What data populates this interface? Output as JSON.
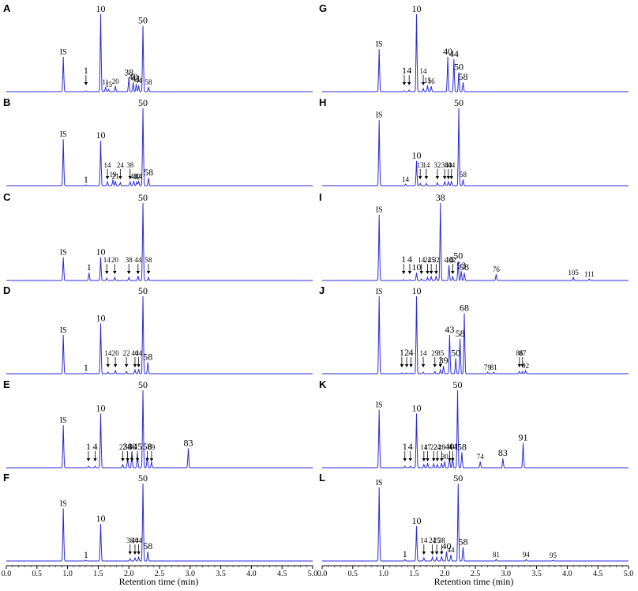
{
  "chart_data": {
    "type": "line",
    "xlabel": "Retention time (min)",
    "xlim": [
      0.0,
      5.0
    ],
    "xticks": [
      "0.0",
      "0.5",
      "1.0",
      "1.5",
      "2.0",
      "2.5",
      "3.0",
      "3.5",
      "4.0",
      "4.5",
      "5.0"
    ],
    "line_color": "#2b2bd8",
    "panels": [
      {
        "id": "A",
        "peaks": [
          {
            "x": 0.93,
            "h": 0.45,
            "label": "IS"
          },
          {
            "x": 1.3,
            "h": 0.01,
            "label": "1",
            "arrow": true
          },
          {
            "x": 1.54,
            "h": 1.0,
            "label": "10"
          },
          {
            "x": 1.62,
            "h": 0.06,
            "label": "11"
          },
          {
            "x": 1.67,
            "h": 0.03,
            "label": "15"
          },
          {
            "x": 1.78,
            "h": 0.07,
            "label": "20"
          },
          {
            "x": 2.0,
            "h": 0.18,
            "label": "38"
          },
          {
            "x": 2.07,
            "h": 0.12,
            "label": "40"
          },
          {
            "x": 2.12,
            "h": 0.1,
            "label": "41"
          },
          {
            "x": 2.16,
            "h": 0.08,
            "label": "44"
          },
          {
            "x": 2.23,
            "h": 0.85,
            "label": "50"
          },
          {
            "x": 2.32,
            "h": 0.06,
            "label": "58"
          }
        ]
      },
      {
        "id": "B",
        "peaks": [
          {
            "x": 0.93,
            "h": 0.6,
            "label": "IS"
          },
          {
            "x": 1.3,
            "h": 0.01,
            "label": "1"
          },
          {
            "x": 1.54,
            "h": 0.58,
            "label": "10"
          },
          {
            "x": 1.65,
            "h": 0.05,
            "label": "14",
            "arrow": true
          },
          {
            "x": 1.74,
            "h": 0.08,
            "label": "19"
          },
          {
            "x": 1.78,
            "h": 0.06,
            "label": "21"
          },
          {
            "x": 1.86,
            "h": 0.04,
            "label": "24",
            "arrow": true
          },
          {
            "x": 2.02,
            "h": 0.05,
            "label": "38",
            "arrow": true
          },
          {
            "x": 2.08,
            "h": 0.06,
            "label": "40"
          },
          {
            "x": 2.13,
            "h": 0.05,
            "label": "42"
          },
          {
            "x": 2.16,
            "h": 0.06,
            "label": "44"
          },
          {
            "x": 2.23,
            "h": 1.0,
            "label": "50"
          },
          {
            "x": 2.32,
            "h": 0.1,
            "label": "58"
          }
        ]
      },
      {
        "id": "C",
        "peaks": [
          {
            "x": 0.93,
            "h": 0.3,
            "label": "IS"
          },
          {
            "x": 1.35,
            "h": 0.1,
            "label": "1"
          },
          {
            "x": 1.54,
            "h": 0.3,
            "label": "10"
          },
          {
            "x": 1.64,
            "h": 0.03,
            "label": "14",
            "arrow": true
          },
          {
            "x": 1.77,
            "h": 0.04,
            "label": "20",
            "arrow": true
          },
          {
            "x": 2.0,
            "h": 0.04,
            "label": "38",
            "arrow": true
          },
          {
            "x": 2.15,
            "h": 0.06,
            "label": "44",
            "arrow": true
          },
          {
            "x": 2.23,
            "h": 1.0,
            "label": "50"
          },
          {
            "x": 2.32,
            "h": 0.04,
            "label": "58",
            "arrow": true
          }
        ]
      },
      {
        "id": "D",
        "peaks": [
          {
            "x": 0.93,
            "h": 0.5,
            "label": "IS"
          },
          {
            "x": 1.3,
            "h": 0.01,
            "label": "1"
          },
          {
            "x": 1.54,
            "h": 0.65,
            "label": "10"
          },
          {
            "x": 1.66,
            "h": 0.02,
            "label": "14",
            "arrow": true
          },
          {
            "x": 1.78,
            "h": 0.04,
            "label": "20",
            "arrow": true
          },
          {
            "x": 1.96,
            "h": 0.03,
            "label": "22",
            "arrow": true
          },
          {
            "x": 2.1,
            "h": 0.05,
            "label": "40",
            "arrow": true
          },
          {
            "x": 2.16,
            "h": 0.06,
            "label": "44",
            "arrow": true
          },
          {
            "x": 2.23,
            "h": 1.0,
            "label": "50"
          },
          {
            "x": 2.31,
            "h": 0.15,
            "label": "58"
          }
        ]
      },
      {
        "id": "E",
        "peaks": [
          {
            "x": 0.93,
            "h": 0.55,
            "label": "IS"
          },
          {
            "x": 1.34,
            "h": 0.02,
            "label": "1",
            "arrow": true
          },
          {
            "x": 1.45,
            "h": 0.02,
            "label": "4",
            "arrow": true
          },
          {
            "x": 1.54,
            "h": 0.7,
            "label": "10"
          },
          {
            "x": 1.9,
            "h": 0.04,
            "label": "22",
            "arrow": true
          },
          {
            "x": 1.98,
            "h": 0.12,
            "label": "38",
            "arrow": true
          },
          {
            "x": 2.05,
            "h": 0.2,
            "label": "40",
            "arrow": true
          },
          {
            "x": 2.14,
            "h": 0.18,
            "label": "45",
            "arrow": true
          },
          {
            "x": 2.23,
            "h": 1.0,
            "label": "50"
          },
          {
            "x": 2.3,
            "h": 0.15,
            "label": "58",
            "arrow": true
          },
          {
            "x": 2.37,
            "h": 0.08,
            "label": "69",
            "arrow": true
          },
          {
            "x": 2.97,
            "h": 0.25,
            "label": "83"
          }
        ]
      },
      {
        "id": "F",
        "peaks": [
          {
            "x": 0.93,
            "h": 0.68,
            "label": "IS"
          },
          {
            "x": 1.3,
            "h": 0.01,
            "label": "1"
          },
          {
            "x": 1.54,
            "h": 0.48,
            "label": "10"
          },
          {
            "x": 2.02,
            "h": 0.03,
            "label": "38",
            "arrow": true
          },
          {
            "x": 2.1,
            "h": 0.04,
            "label": "40",
            "arrow": true
          },
          {
            "x": 2.16,
            "h": 0.05,
            "label": "44",
            "arrow": true
          },
          {
            "x": 2.23,
            "h": 1.0,
            "label": "50"
          },
          {
            "x": 2.31,
            "h": 0.12,
            "label": "58"
          }
        ]
      },
      {
        "id": "G",
        "peaks": [
          {
            "x": 0.93,
            "h": 0.55,
            "label": "IS"
          },
          {
            "x": 1.34,
            "h": 0.01,
            "label": "1",
            "arrow": true
          },
          {
            "x": 1.42,
            "h": 0.02,
            "label": "4",
            "arrow": true
          },
          {
            "x": 1.54,
            "h": 1.0,
            "label": "10"
          },
          {
            "x": 1.65,
            "h": 0.04,
            "label": "14",
            "arrow": true
          },
          {
            "x": 1.72,
            "h": 0.08,
            "label": "15"
          },
          {
            "x": 1.78,
            "h": 0.07,
            "label": "16"
          },
          {
            "x": 2.05,
            "h": 0.45,
            "label": "40"
          },
          {
            "x": 2.15,
            "h": 0.42,
            "label": "44"
          },
          {
            "x": 2.23,
            "h": 0.25,
            "label": "50"
          },
          {
            "x": 2.3,
            "h": 0.12,
            "label": "58"
          }
        ]
      },
      {
        "id": "H",
        "peaks": [
          {
            "x": 0.93,
            "h": 0.85,
            "label": "IS"
          },
          {
            "x": 1.36,
            "h": 0.02,
            "label": "14"
          },
          {
            "x": 1.54,
            "h": 0.32,
            "label": "10"
          },
          {
            "x": 1.6,
            "h": 0.03,
            "label": "13",
            "arrow": true
          },
          {
            "x": 1.7,
            "h": 0.03,
            "label": "14",
            "arrow": true
          },
          {
            "x": 1.88,
            "h": 0.04,
            "label": "32",
            "arrow": true
          },
          {
            "x": 2.0,
            "h": 0.05,
            "label": "38",
            "arrow": true
          },
          {
            "x": 2.06,
            "h": 0.05,
            "label": "40",
            "arrow": true
          },
          {
            "x": 2.11,
            "h": 0.06,
            "label": "44",
            "arrow": true
          },
          {
            "x": 2.23,
            "h": 1.0,
            "label": "50"
          },
          {
            "x": 2.3,
            "h": 0.08,
            "label": "58"
          }
        ]
      },
      {
        "id": "I",
        "peaks": [
          {
            "x": 0.93,
            "h": 0.85,
            "label": "IS"
          },
          {
            "x": 1.33,
            "h": 0.01,
            "label": "1",
            "arrow": true
          },
          {
            "x": 1.43,
            "h": 0.01,
            "label": "4",
            "arrow": true
          },
          {
            "x": 1.54,
            "h": 0.1,
            "label": "10"
          },
          {
            "x": 1.62,
            "h": 0.02,
            "label": "14",
            "arrow": true
          },
          {
            "x": 1.72,
            "h": 0.04,
            "label": "24",
            "arrow": true
          },
          {
            "x": 1.78,
            "h": 0.05,
            "label": "25",
            "arrow": true
          },
          {
            "x": 1.86,
            "h": 0.06,
            "label": "32",
            "arrow": true
          },
          {
            "x": 1.93,
            "h": 1.0,
            "label": "38"
          },
          {
            "x": 2.07,
            "h": 0.2,
            "label": "40"
          },
          {
            "x": 2.13,
            "h": 0.05,
            "label": "42",
            "arrow": true
          },
          {
            "x": 2.22,
            "h": 0.25,
            "label": "50"
          },
          {
            "x": 2.27,
            "h": 0.12,
            "label": "53"
          },
          {
            "x": 2.32,
            "h": 0.1,
            "label": "58"
          },
          {
            "x": 2.84,
            "h": 0.08,
            "label": "76"
          },
          {
            "x": 4.1,
            "h": 0.04,
            "label": "105"
          },
          {
            "x": 4.36,
            "h": 0.02,
            "label": "111"
          }
        ]
      },
      {
        "id": "J",
        "peaks": [
          {
            "x": 0.93,
            "h": 1.0,
            "label": "IS"
          },
          {
            "x": 1.3,
            "h": 0.01,
            "label": "1",
            "arrow": true
          },
          {
            "x": 1.38,
            "h": 0.01,
            "label": "2",
            "arrow": true
          },
          {
            "x": 1.45,
            "h": 0.01,
            "label": "4",
            "arrow": true
          },
          {
            "x": 1.54,
            "h": 1.0,
            "label": "10"
          },
          {
            "x": 1.65,
            "h": 0.02,
            "label": "14",
            "arrow": true
          },
          {
            "x": 1.84,
            "h": 0.03,
            "label": "29",
            "arrow": true
          },
          {
            "x": 1.93,
            "h": 0.05,
            "label": "35",
            "arrow": true
          },
          {
            "x": 1.98,
            "h": 0.1,
            "label": "39"
          },
          {
            "x": 2.08,
            "h": 0.5,
            "label": "43"
          },
          {
            "x": 2.18,
            "h": 0.2,
            "label": "50"
          },
          {
            "x": 2.25,
            "h": 0.45,
            "label": "58"
          },
          {
            "x": 2.32,
            "h": 0.78,
            "label": "68"
          },
          {
            "x": 2.7,
            "h": 0.02,
            "label": "79"
          },
          {
            "x": 2.8,
            "h": 0.02,
            "label": "81"
          },
          {
            "x": 3.22,
            "h": 0.03,
            "label": "86",
            "arrow": true
          },
          {
            "x": 3.27,
            "h": 0.03,
            "label": "87",
            "arrow": true
          },
          {
            "x": 3.32,
            "h": 0.04,
            "label": "92"
          }
        ]
      },
      {
        "id": "K",
        "peaks": [
          {
            "x": 0.93,
            "h": 0.75,
            "label": "IS"
          },
          {
            "x": 1.35,
            "h": 0.02,
            "label": "1",
            "arrow": true
          },
          {
            "x": 1.44,
            "h": 0.02,
            "label": "4",
            "arrow": true
          },
          {
            "x": 1.54,
            "h": 0.7,
            "label": "10"
          },
          {
            "x": 1.66,
            "h": 0.04,
            "label": "14",
            "arrow": true
          },
          {
            "x": 1.72,
            "h": 0.06,
            "label": "17",
            "arrow": true
          },
          {
            "x": 1.82,
            "h": 0.05,
            "label": "22",
            "arrow": true
          },
          {
            "x": 1.88,
            "h": 0.04,
            "label": "24",
            "arrow": true
          },
          {
            "x": 1.95,
            "h": 0.06,
            "label": "28",
            "arrow": true
          },
          {
            "x": 2.0,
            "h": 0.08,
            "label": "30"
          },
          {
            "x": 2.08,
            "h": 0.12,
            "label": "40",
            "arrow": true
          },
          {
            "x": 2.13,
            "h": 0.14,
            "label": "44",
            "arrow": true
          },
          {
            "x": 2.21,
            "h": 1.0,
            "label": "50"
          },
          {
            "x": 2.28,
            "h": 0.2,
            "label": "58"
          },
          {
            "x": 2.58,
            "h": 0.08,
            "label": "74"
          },
          {
            "x": 2.95,
            "h": 0.12,
            "label": "83"
          },
          {
            "x": 3.28,
            "h": 0.32,
            "label": "91"
          }
        ]
      },
      {
        "id": "L",
        "peaks": [
          {
            "x": 0.93,
            "h": 0.95,
            "label": "IS"
          },
          {
            "x": 1.35,
            "h": 0.02,
            "label": "1"
          },
          {
            "x": 1.54,
            "h": 0.45,
            "label": "10"
          },
          {
            "x": 1.66,
            "h": 0.04,
            "label": "14",
            "arrow": true
          },
          {
            "x": 1.8,
            "h": 0.05,
            "label": "24",
            "arrow": true
          },
          {
            "x": 1.87,
            "h": 0.05,
            "label": "25",
            "arrow": true
          },
          {
            "x": 1.95,
            "h": 0.06,
            "label": "38",
            "arrow": true
          },
          {
            "x": 2.03,
            "h": 0.12,
            "label": "40"
          },
          {
            "x": 2.1,
            "h": 0.08,
            "label": "44"
          },
          {
            "x": 2.22,
            "h": 1.0,
            "label": "50"
          },
          {
            "x": 2.3,
            "h": 0.18,
            "label": "58"
          },
          {
            "x": 2.84,
            "h": 0.02,
            "label": "81"
          },
          {
            "x": 3.33,
            "h": 0.02,
            "label": "94"
          },
          {
            "x": 3.77,
            "h": 0.01,
            "label": "95"
          }
        ]
      }
    ]
  }
}
